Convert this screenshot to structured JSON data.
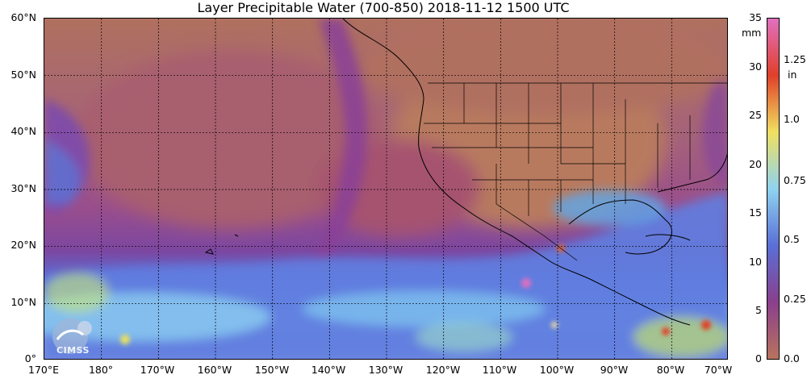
{
  "title": "Layer Precipitable Water (700-850)  2018-11-12 1500 UTC",
  "lat_labels": [
    "60°N",
    "50°N",
    "40°N",
    "30°N",
    "20°N",
    "10°N",
    "0°"
  ],
  "lon_labels": [
    "170°E",
    "180°",
    "170°W",
    "160°W",
    "150°W",
    "140°W",
    "130°W",
    "120°W",
    "110°W",
    "100°W",
    "90°W",
    "80°W",
    "70°W"
  ],
  "colorbar": {
    "mm_ticks": [
      "35",
      "30",
      "25",
      "20",
      "15",
      "10",
      "5",
      "0"
    ],
    "unit_mm": "mm",
    "in_ticks": [
      "1.25",
      "1.0",
      "0.75",
      "0.5",
      "0.25",
      "0.0"
    ],
    "unit_in": "in",
    "range_mm": [
      0,
      35
    ]
  },
  "colors": {
    "dry": "#b8735e",
    "low": "#8a3f8c",
    "mid": "#5a6fd6",
    "moist": "#8fd3f0",
    "wet": "#f0e060",
    "very_wet": "#e0402a",
    "max": "#e070c0"
  },
  "logo_text": "CIMSS"
}
